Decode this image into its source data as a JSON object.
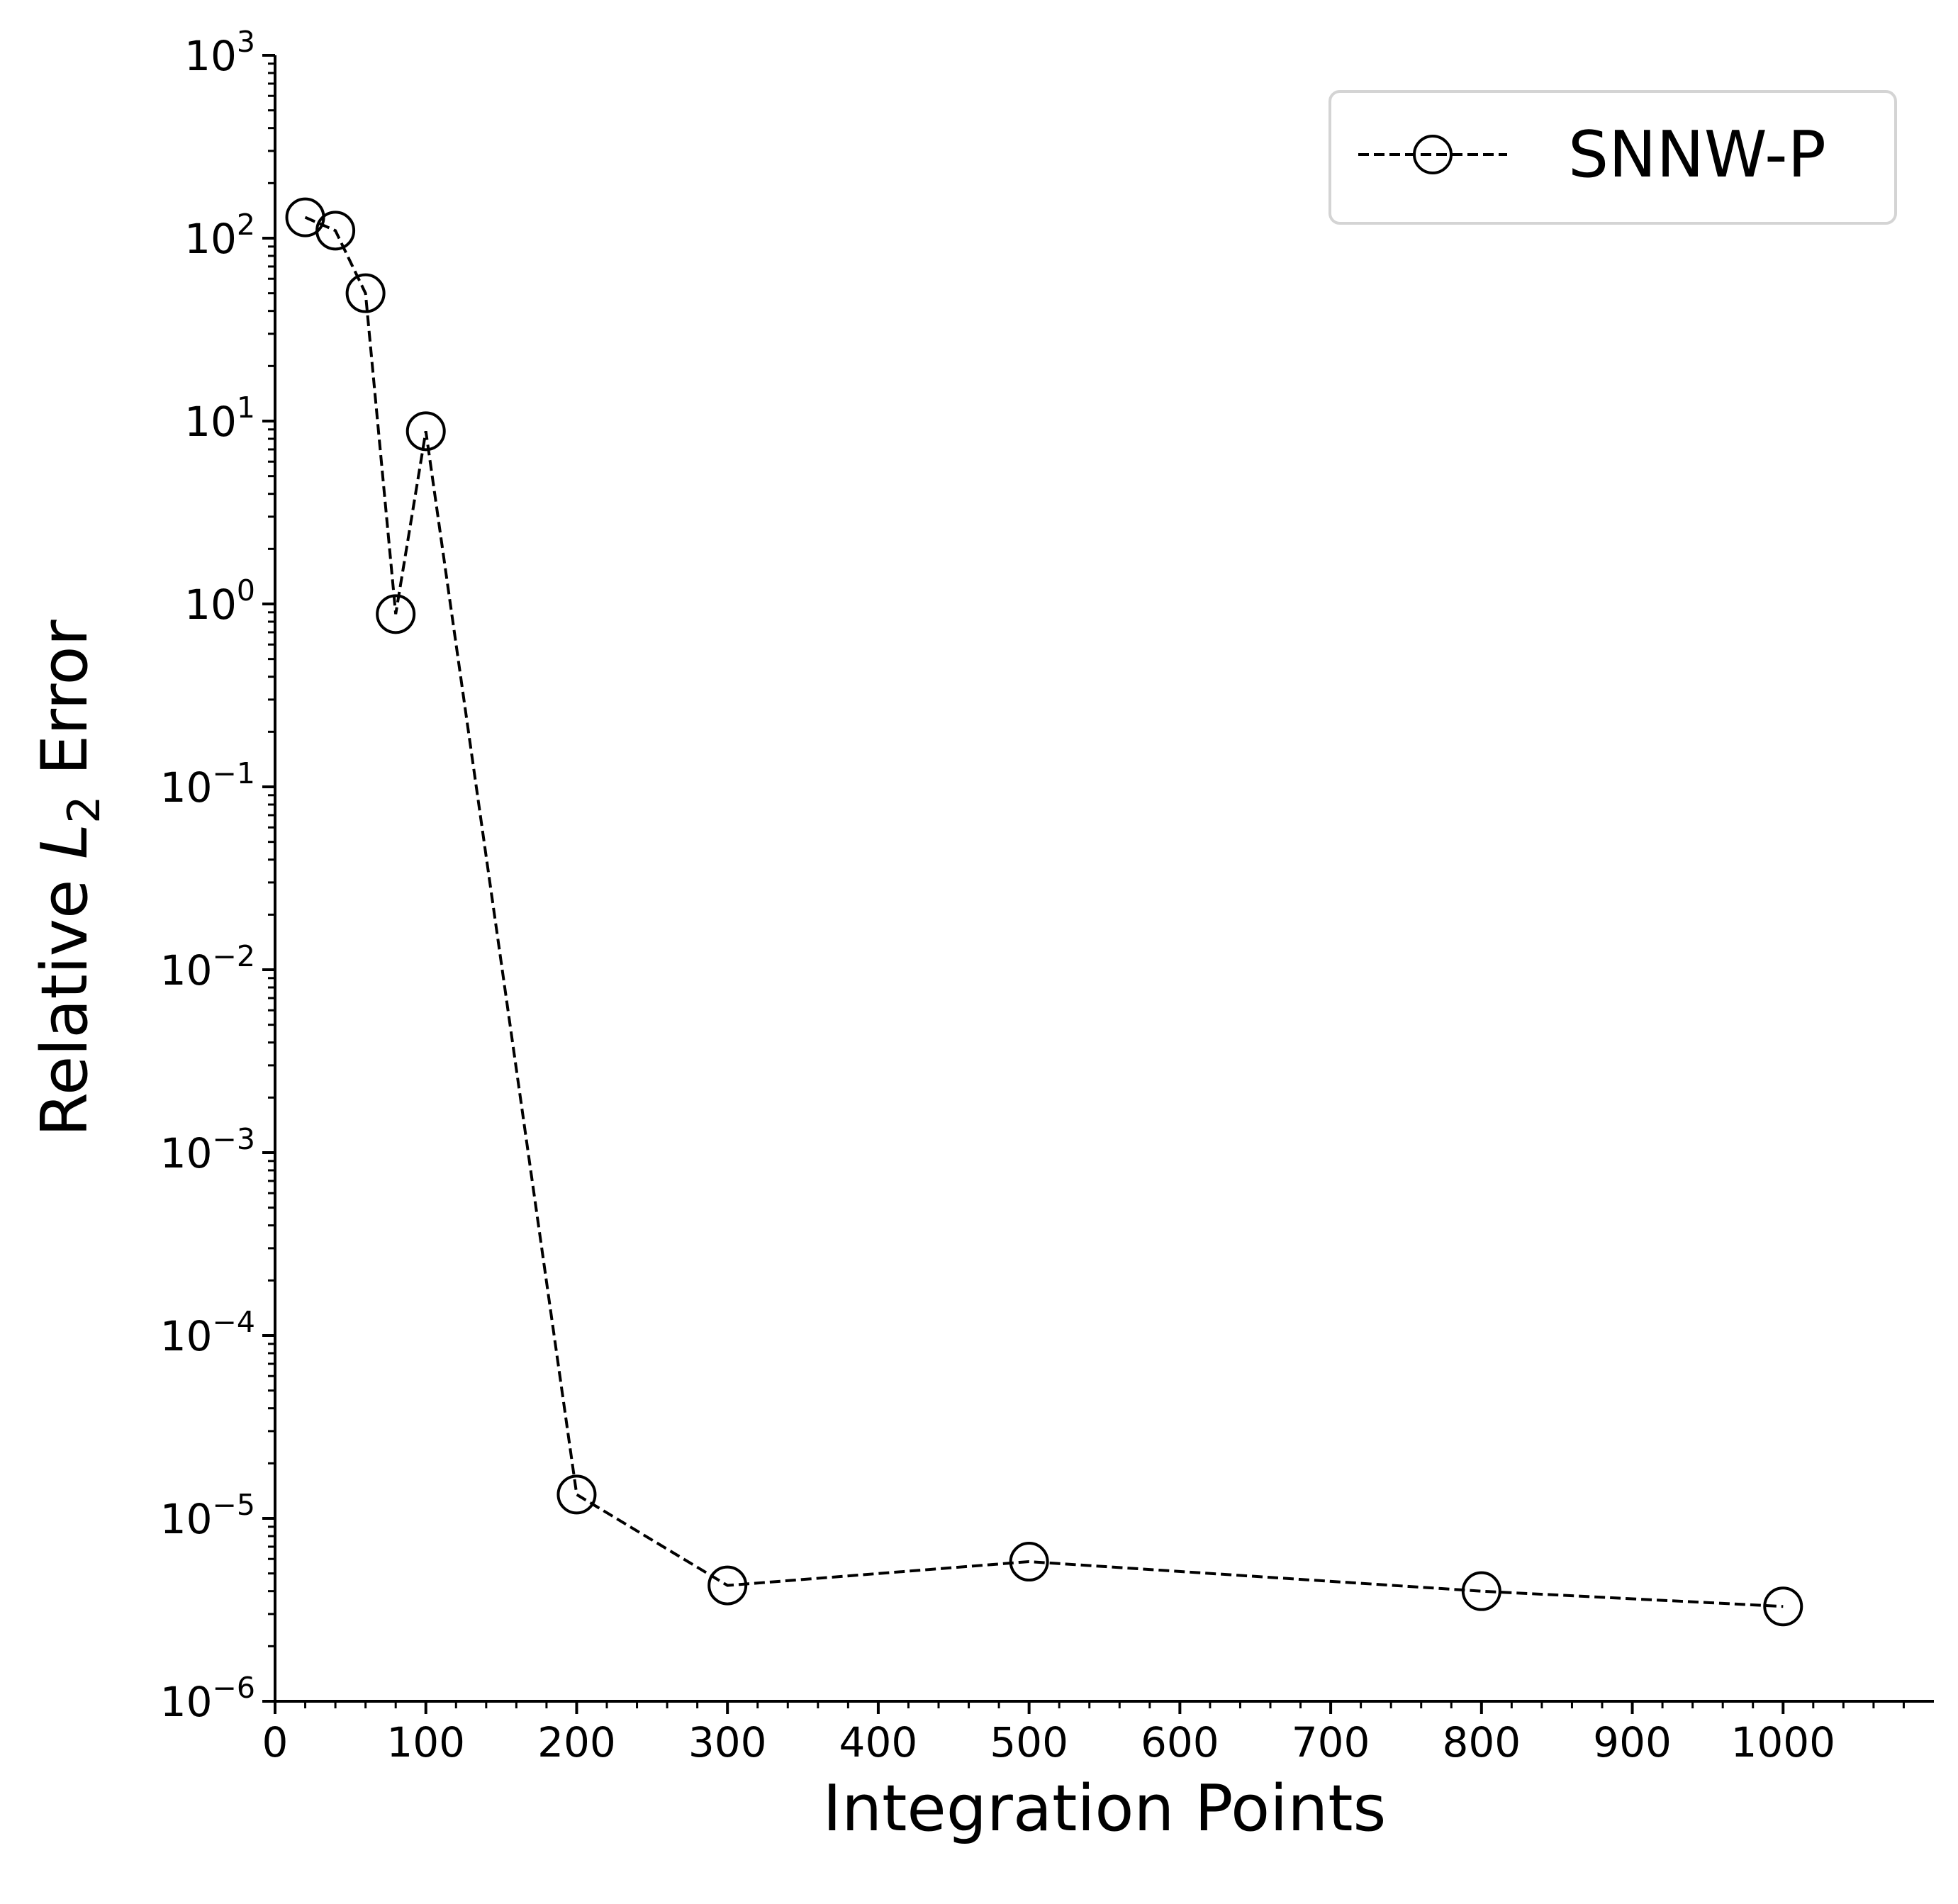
{
  "chart_data": {
    "type": "line",
    "title": "",
    "xlabel": "Integration Points",
    "ylabel": "Relative L_2 Error",
    "ylabel_parts": {
      "prefix": "Relative ",
      "symbol": "L",
      "subscript": "2",
      "suffix": " Error"
    },
    "x_scale": "linear",
    "y_scale": "log",
    "xlim": [
      0,
      1100
    ],
    "ylim": [
      1e-06,
      1000
    ],
    "x_ticks": [
      0,
      100,
      200,
      300,
      400,
      500,
      600,
      700,
      800,
      900,
      1000
    ],
    "x_tick_labels": [
      "0",
      "100",
      "200",
      "300",
      "400",
      "500",
      "600",
      "700",
      "800",
      "900",
      "1000"
    ],
    "y_ticks": [
      {
        "base": "10",
        "exp": "3"
      },
      {
        "base": "10",
        "exp": "2"
      },
      {
        "base": "10",
        "exp": "1"
      },
      {
        "base": "10",
        "exp": "0"
      },
      {
        "base": "10",
        "exp": "−1"
      },
      {
        "base": "10",
        "exp": "−2"
      },
      {
        "base": "10",
        "exp": "−3"
      },
      {
        "base": "10",
        "exp": "−4"
      },
      {
        "base": "10",
        "exp": "−5"
      },
      {
        "base": "10",
        "exp": "−6"
      }
    ],
    "grid": false,
    "legend_position": "top-right",
    "series": [
      {
        "name": "SNNW-P",
        "color": "#000000",
        "line_style": "dashed",
        "marker": "open-circle",
        "x": [
          20,
          40,
          60,
          80,
          100,
          200,
          300,
          500,
          800,
          1000
        ],
        "y": [
          130,
          110,
          50,
          0.88,
          8.8,
          1.35e-05,
          4.3e-06,
          5.8e-06,
          4e-06,
          3.3e-06
        ]
      }
    ]
  }
}
